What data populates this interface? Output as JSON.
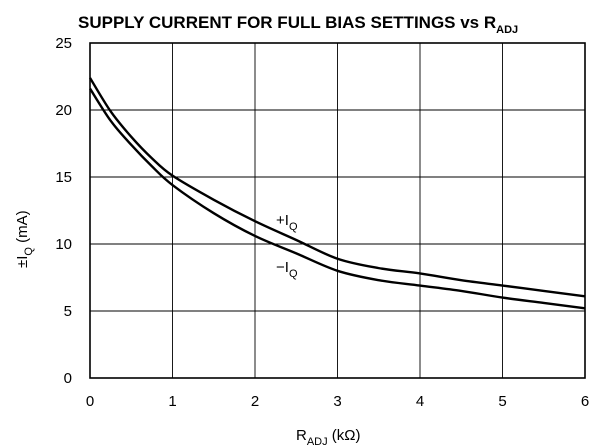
{
  "chart_data": {
    "type": "line",
    "title": "SUPPLY CURRENT FOR FULL BIAS SETTINGS vs R",
    "title_sub": "ADJ",
    "xlabel": "R",
    "xlabel_sub": "ADJ",
    "xlabel_tail": " (kΩ)",
    "ylabel": "±I",
    "ylabel_sub": "Q",
    "ylabel_tail": " (mA)",
    "xlim": [
      0,
      6
    ],
    "ylim": [
      0,
      25
    ],
    "xticks": [
      "0",
      "1",
      "2",
      "3",
      "4",
      "5",
      "6"
    ],
    "yticks": [
      "0",
      "5",
      "10",
      "15",
      "20",
      "25"
    ],
    "grid": true,
    "series": [
      {
        "name": "+I",
        "name_sub": "Q",
        "x": [
          0,
          0.25,
          0.5,
          0.75,
          1.0,
          1.5,
          2.0,
          2.5,
          3.0,
          3.5,
          4.0,
          4.5,
          5.0,
          5.5,
          6.0
        ],
        "y": [
          22.4,
          19.9,
          18.0,
          16.4,
          15.1,
          13.3,
          11.7,
          10.3,
          8.9,
          8.2,
          7.8,
          7.3,
          6.9,
          6.5,
          6.1
        ]
      },
      {
        "name": "−I",
        "name_sub": "Q",
        "x": [
          0,
          0.25,
          0.5,
          0.75,
          1.0,
          1.5,
          2.0,
          2.5,
          3.0,
          3.5,
          4.0,
          4.5,
          5.0,
          5.5,
          6.0
        ],
        "y": [
          21.6,
          19.2,
          17.4,
          15.8,
          14.4,
          12.3,
          10.6,
          9.3,
          8.0,
          7.3,
          6.9,
          6.5,
          6.0,
          5.6,
          5.2
        ]
      }
    ]
  }
}
